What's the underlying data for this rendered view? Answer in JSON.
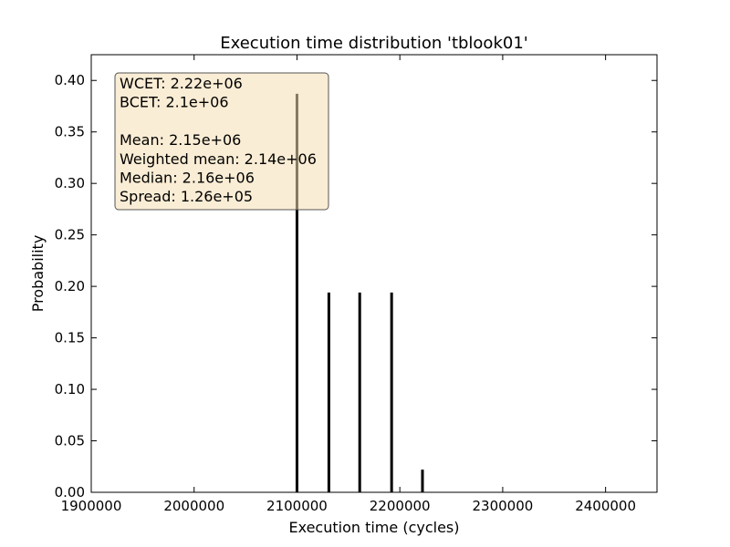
{
  "chart_data": {
    "type": "bar",
    "title": "Execution time distribution 'tblook01'",
    "xlabel": "Execution time (cycles)",
    "ylabel": "Probability",
    "xlim": [
      1900000,
      2450000
    ],
    "ylim": [
      0.0,
      0.425
    ],
    "xticks": [
      1900000,
      2000000,
      2100000,
      2200000,
      2300000,
      2400000
    ],
    "xtick_labels": [
      "1900000",
      "2000000",
      "2100000",
      "2200000",
      "2300000",
      "2400000"
    ],
    "yticks": [
      0.0,
      0.05,
      0.1,
      0.15,
      0.2,
      0.25,
      0.3,
      0.35,
      0.4
    ],
    "ytick_labels": [
      "0.00",
      "0.05",
      "0.10",
      "0.15",
      "0.20",
      "0.25",
      "0.30",
      "0.35",
      "0.40"
    ],
    "grid": false,
    "bar_color": "#000000",
    "x": [
      2100000,
      2131000,
      2161000,
      2192000,
      2222000
    ],
    "values": [
      0.387,
      0.194,
      0.194,
      0.194,
      0.022
    ],
    "stats_box": {
      "lines": [
        "WCET: 2.22e+06",
        "BCET: 2.1e+06",
        "",
        "Mean: 2.15e+06",
        "Weighted mean: 2.14e+06",
        "Median: 2.16e+06",
        "Spread: 1.26e+05"
      ],
      "background": "#f5deb3",
      "placement": "top-left"
    }
  }
}
